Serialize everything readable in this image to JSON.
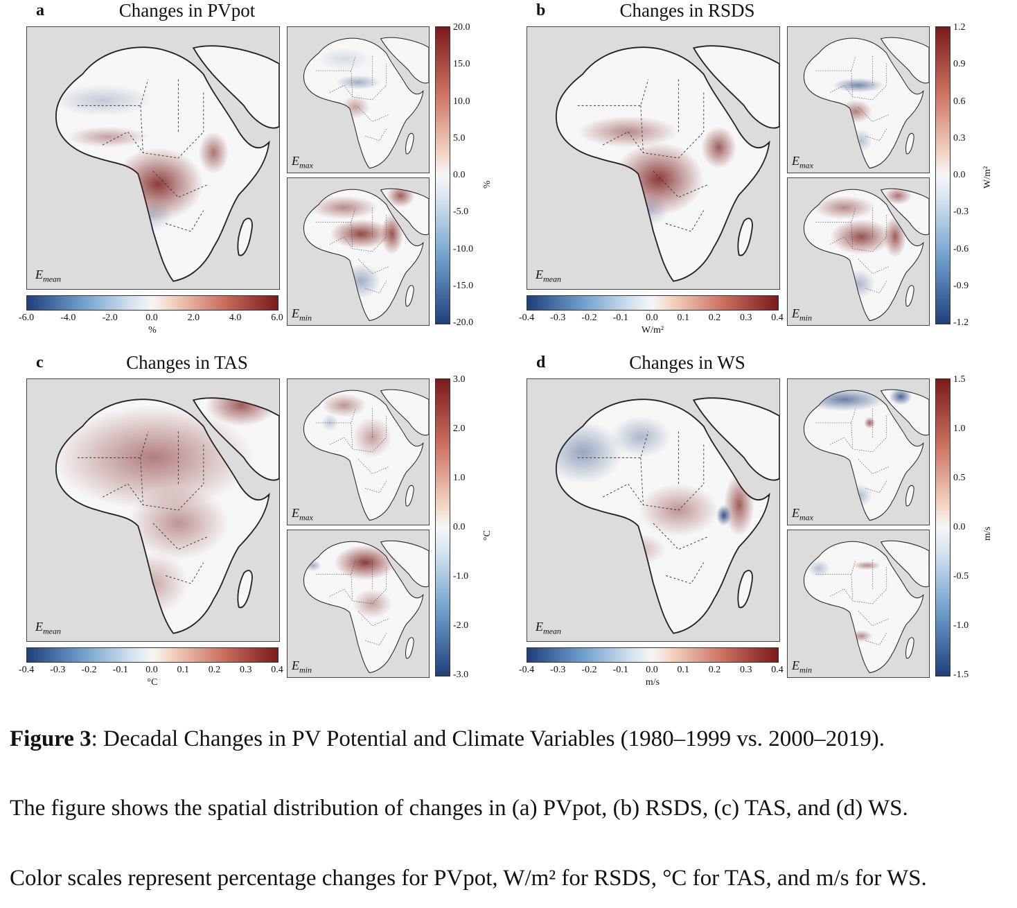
{
  "figure": {
    "panels": {
      "a": {
        "letter": "a",
        "title": "Changes in PVpot",
        "main_tag": "mean",
        "max_tag": "max",
        "min_tag": "min",
        "hbar_ticks": [
          "-6.0",
          "-4.0",
          "-2.0",
          "0.0",
          "2.0",
          "4.0",
          "6.0"
        ],
        "hbar_unit": "%",
        "vbar_ticks": [
          "20.0",
          "15.0",
          "10.0",
          "5.0",
          "0.0",
          "-5.0",
          "-10.0",
          "-15.0",
          "-20.0"
        ],
        "vbar_unit": "%"
      },
      "b": {
        "letter": "b",
        "title": "Changes in RSDS",
        "main_tag": "mean",
        "max_tag": "max",
        "min_tag": "min",
        "hbar_ticks": [
          "-0.4",
          "-0.3",
          "-0.2",
          "-0.1",
          "0.0",
          "0.1",
          "0.2",
          "0.3",
          "0.4"
        ],
        "hbar_unit": "W/m²",
        "vbar_ticks": [
          "1.2",
          "0.9",
          "0.6",
          "0.3",
          "0.0",
          "-0.3",
          "-0.6",
          "-0.9",
          "-1.2"
        ],
        "vbar_unit": "W/m²"
      },
      "c": {
        "letter": "c",
        "title": "Changes in TAS",
        "main_tag": "mean",
        "max_tag": "max",
        "min_tag": "min",
        "hbar_ticks": [
          "-0.4",
          "-0.3",
          "-0.2",
          "-0.1",
          "0.0",
          "0.1",
          "0.2",
          "0.3",
          "0.4"
        ],
        "hbar_unit": "°C",
        "vbar_ticks": [
          "3.0",
          "2.0",
          "1.0",
          "0.0",
          "-1.0",
          "-2.0",
          "-3.0"
        ],
        "vbar_unit": "°C"
      },
      "d": {
        "letter": "d",
        "title": "Changes in WS",
        "main_tag": "mean",
        "max_tag": "max",
        "min_tag": "min",
        "hbar_ticks": [
          "-0.4",
          "-0.3",
          "-0.2",
          "-0.1",
          "0.0",
          "0.1",
          "0.2",
          "0.3",
          "0.4"
        ],
        "hbar_unit": "m/s",
        "vbar_ticks": [
          "1.5",
          "1.0",
          "0.5",
          "0.0",
          "-0.5",
          "-1.0",
          "-1.5"
        ],
        "vbar_unit": "m/s"
      }
    },
    "e_symbol": "E",
    "colors": {
      "neg": "#1f3f7a",
      "mid": "#f7f7f7",
      "pos": "#7a1a1a",
      "land_bg": "#dcdcdc"
    }
  },
  "caption": {
    "label": "Figure 3",
    "title_text": ": Decadal Changes in PV Potential and Climate Variables (1980–1999 vs. 2000–2019).",
    "line2": "The figure shows the spatial distribution of changes in (a) PVpot, (b) RSDS, (c) TAS, and (d) WS.",
    "line3": "Color scales represent percentage changes for PVpot, W/m² for RSDS, °C for TAS, and m/s for WS."
  }
}
